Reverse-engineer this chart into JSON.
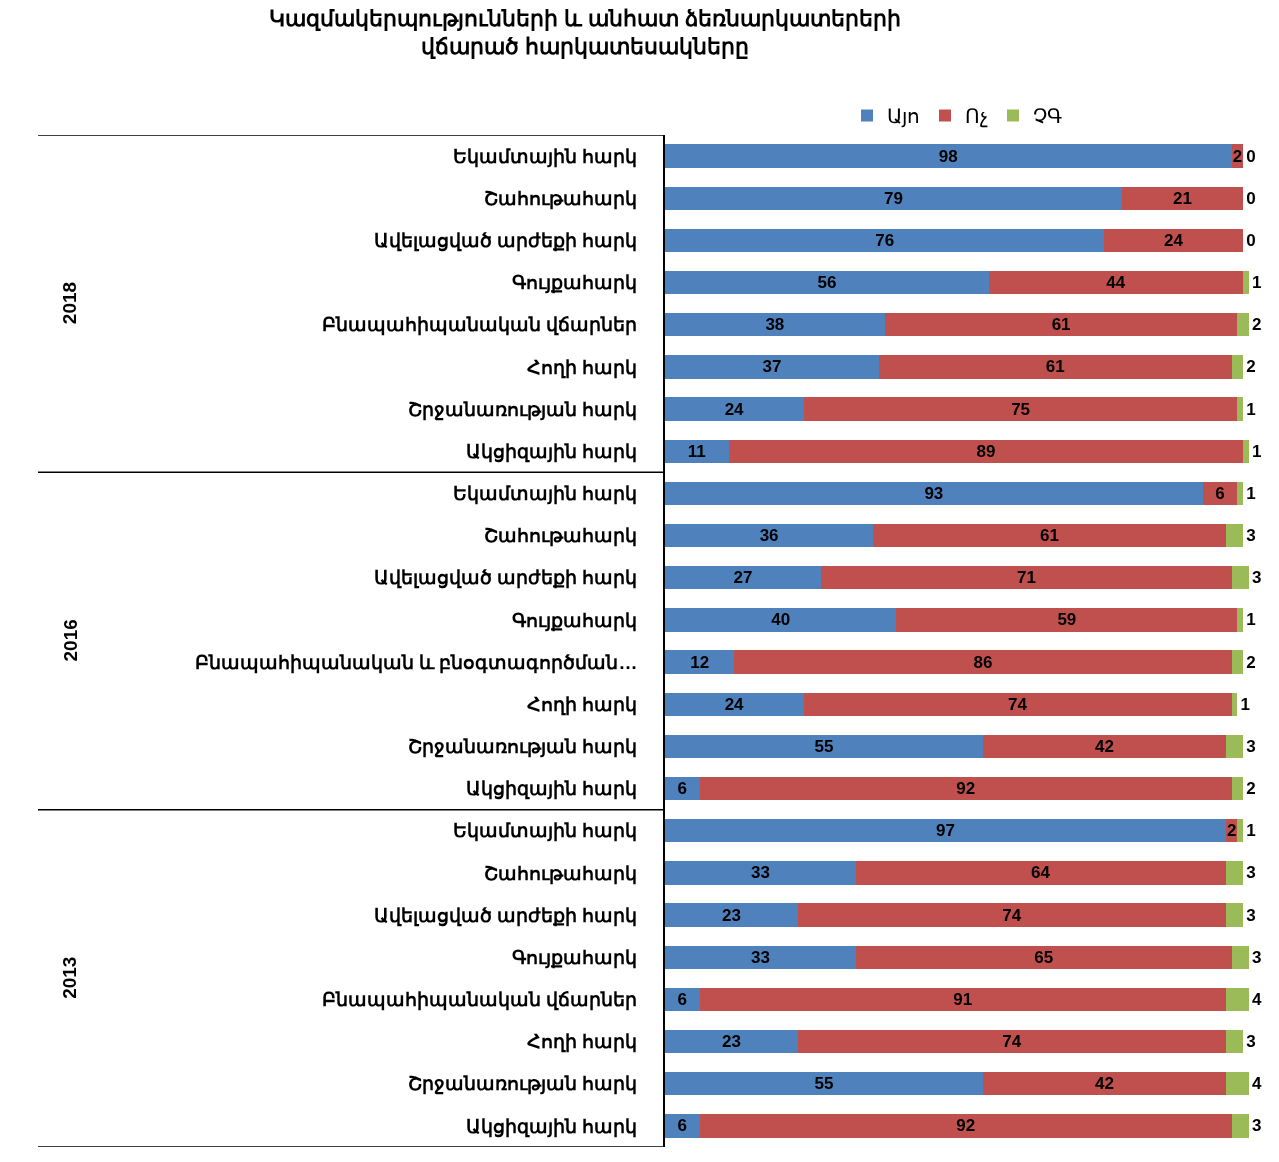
{
  "chart_data": {
    "type": "bar",
    "orientation": "horizontal",
    "stacked": true,
    "data_labels": true,
    "legend": "top",
    "tick_labels": "y",
    "title": "Կազմակերպությունների և անհատ ձեռնարկատերերի վճարած հարկատեսակները",
    "xlim": [
      0,
      101
    ],
    "categories": [
      "Եկամտային հարկ",
      "Շահութահարկ",
      "Ավելացված արժեքի հարկ",
      "Գույքահարկ",
      "Բնապահիպանական վճարներ",
      "Հողի հարկ",
      "Շրջանառության հարկ",
      "Ակցիզային հարկ",
      "Եկամտային հարկ",
      "Շահութահարկ",
      "Ավելացված արժեքի հարկ",
      "Գույքահարկ",
      "Բնապահիպանական և բնօգտագործման…",
      "Հողի հարկ",
      "Շրջանառության հարկ",
      "Ակցիզային հարկ",
      "Եկամտային հարկ",
      "Շահութահարկ",
      "Ավելացված արժեքի հարկ",
      "Գույքահարկ",
      "Բնապահիպանական վճարներ",
      "Հողի հարկ",
      "Շրջանառության հարկ",
      "Ակցիզային հարկ"
    ],
    "series": [
      {
        "name": "Այո",
        "color": "#4f81bd",
        "values": [
          98,
          79,
          76,
          56,
          38,
          37,
          24,
          11,
          93,
          36,
          27,
          40,
          12,
          24,
          55,
          6,
          97,
          33,
          23,
          33,
          6,
          23,
          55,
          6
        ]
      },
      {
        "name": "Ոչ",
        "color": "#c0504d",
        "values": [
          2,
          21,
          24,
          44,
          61,
          61,
          75,
          89,
          6,
          61,
          71,
          59,
          86,
          74,
          42,
          92,
          2,
          64,
          74,
          65,
          91,
          74,
          42,
          92
        ]
      },
      {
        "name": "ՉԳ",
        "color": "#9bbb59",
        "values": [
          0,
          0,
          0,
          1,
          2,
          2,
          1,
          1,
          1,
          3,
          3,
          1,
          2,
          1,
          3,
          2,
          1,
          3,
          3,
          3,
          4,
          3,
          4,
          3
        ]
      }
    ],
    "annotations": [
      "2018",
      "2016",
      "2013"
    ]
  }
}
